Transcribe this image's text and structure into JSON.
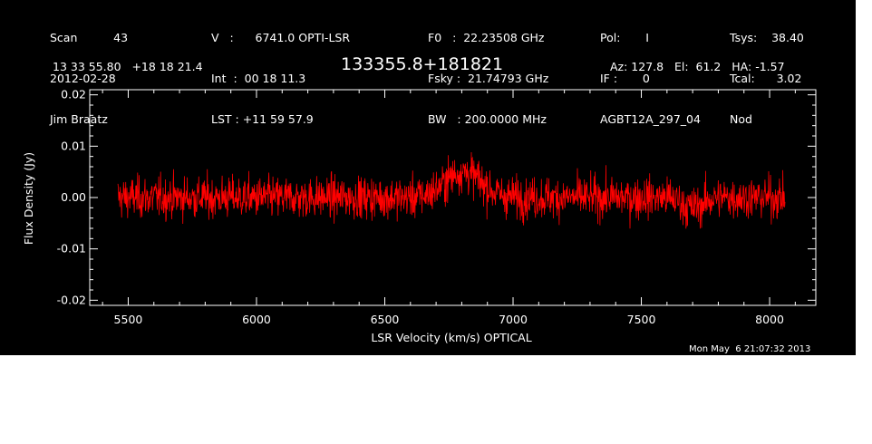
{
  "header": {
    "col1": [
      "Scan          43",
      "2012-02-28",
      "Jim Braatz"
    ],
    "col2": [
      "V   :      6741.0 OPTI-LSR",
      "Int  :  00 18 11.3",
      "LST : +11 59 57.9"
    ],
    "col3": [
      "F0   :  22.23508 GHz",
      "Fsky :  21.74793 GHz",
      "BW   : 200.0000 MHz"
    ],
    "col4": [
      "Pol:       I",
      "IF :       0",
      "AGBT12A_297_04"
    ],
    "col5": [
      "Tsys:    38.40",
      "Tcal:      3.02",
      "Nod"
    ],
    "coords": "13 33 55.80   +18 18 21.4",
    "source": "133355.8+181821",
    "azel": "Az: 127.8   El:  61.2   HA: -1.57"
  },
  "timestamp": "Mon May  6 21:07:32 2013",
  "colors": {
    "background": "#000000",
    "trace": "#ff0000",
    "axes": "#ffffff"
  },
  "chart_data": {
    "type": "line",
    "title": "",
    "xlabel": "LSR Velocity (km/s) OPTICAL",
    "ylabel": "Flux Density (Jy)",
    "xlim": [
      5350,
      8180
    ],
    "ylim": [
      -0.021,
      0.021
    ],
    "x_ticks": [
      5500,
      6000,
      6500,
      7000,
      7500,
      8000
    ],
    "y_ticks": [
      -0.02,
      -0.01,
      0.0,
      0.01,
      0.02
    ],
    "x_tick_labels": [
      "5500",
      "6000",
      "6500",
      "7000",
      "7500",
      "8000"
    ],
    "y_tick_labels": [
      "-0.02",
      "-0.01",
      "0.00",
      "0.01",
      "0.02"
    ],
    "grid": false,
    "series": [
      {
        "x_range": [
          5460,
          8060
        ],
        "noise_rms": 0.004,
        "features": [
          {
            "center": 6805,
            "width": 70,
            "peak": 0.005
          },
          {
            "center": 7700,
            "width": 40,
            "peak": -0.002
          }
        ]
      }
    ]
  }
}
